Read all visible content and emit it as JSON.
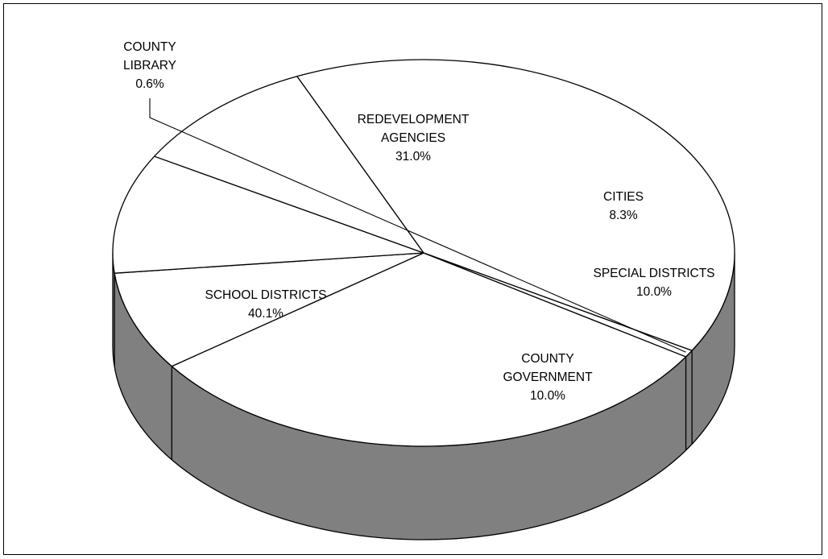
{
  "chart_data": {
    "type": "pie",
    "style": "3d-tilted",
    "legend": "none",
    "colors": {
      "top": "#ffffff",
      "side": "#808080",
      "stroke": "#000000"
    },
    "slices": [
      {
        "name": "REDEVELOPMENT AGENCIES",
        "lines": [
          "REDEVELOPMENT",
          "AGENCIES"
        ],
        "value": 31.0,
        "pct_label": "31.0%"
      },
      {
        "name": "CITIES",
        "lines": [
          "CITIES"
        ],
        "value": 8.3,
        "pct_label": "8.3%"
      },
      {
        "name": "SPECIAL DISTRICTS",
        "lines": [
          "SPECIAL DISTRICTS"
        ],
        "value": 10.0,
        "pct_label": "10.0%"
      },
      {
        "name": "COUNTY GOVERNMENT",
        "lines": [
          "COUNTY",
          "GOVERNMENT"
        ],
        "value": 10.0,
        "pct_label": "10.0%"
      },
      {
        "name": "SCHOOL DISTRICTS",
        "lines": [
          "SCHOOL DISTRICTS"
        ],
        "value": 40.1,
        "pct_label": "40.1%"
      },
      {
        "name": "COUNTY LIBRARY",
        "lines": [
          "COUNTY",
          "LIBRARY"
        ],
        "value": 0.6,
        "pct_label": "0.6%"
      }
    ]
  }
}
